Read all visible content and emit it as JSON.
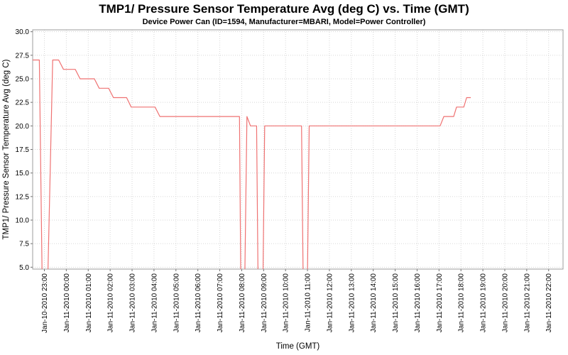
{
  "chart_data": {
    "type": "line",
    "title": "TMP1/ Pressure Sensor Temperature Avg (deg C) vs. Time (GMT)",
    "subtitle": "Device Power Can (ID=1594, Manufacturer=MBARI, Model=Power Controller)",
    "xlabel": "Time (GMT)",
    "ylabel": "TMP1/ Pressure Sensor Temperature Avg (deg C)",
    "ylim": [
      5.0,
      30.0
    ],
    "grid": true,
    "legend": "none",
    "y_tick_labels": [
      "5.0",
      "7.5",
      "10.0",
      "12.5",
      "15.0",
      "17.5",
      "20.0",
      "22.5",
      "25.0",
      "27.5",
      "30.0"
    ],
    "x_tick_labels": [
      "Jan-10-2010 23:00",
      "Jan-11-2010 00:00",
      "Jan-11-2010 01:00",
      "Jan-11-2010 02:00",
      "Jan-11-2010 03:00",
      "Jan-11-2010 04:00",
      "Jan-11-2010 05:00",
      "Jan-11-2010 06:00",
      "Jan-11-2010 07:00",
      "Jan-11-2010 08:00",
      "Jan-11-2010 09:00",
      "Jan-11-2010 10:00",
      "Jan-11-2010 11:00",
      "Jan-11-2010 12:00",
      "Jan-11-2010 13:00",
      "Jan-11-2010 14:00",
      "Jan-11-2010 15:00",
      "Jan-11-2010 16:00",
      "Jan-11-2010 17:00",
      "Jan-11-2010 18:00",
      "Jan-11-2010 19:00",
      "Jan-11-2010 20:00",
      "Jan-11-2010 21:00",
      "Jan-11-2010 22:00"
    ],
    "x_unit": "hours offset from first tick; tick index i corresponds to x_tick_labels[i]",
    "note": "temperature steps are ~1 deg; four spikes drop below the axis minimum and are clipped at 5.0",
    "series": [
      {
        "name": "TMP1/ Pressure Sensor Temperature Avg",
        "color": "#ef7272",
        "points": [
          [
            -0.55,
            27
          ],
          [
            -0.23,
            27
          ],
          [
            -0.08,
            0
          ],
          [
            0.12,
            0
          ],
          [
            0.38,
            27
          ],
          [
            0.65,
            27
          ],
          [
            0.87,
            26
          ],
          [
            1.41,
            26
          ],
          [
            1.63,
            25
          ],
          [
            2.28,
            25
          ],
          [
            2.5,
            24
          ],
          [
            2.93,
            24
          ],
          [
            3.15,
            23
          ],
          [
            3.75,
            23
          ],
          [
            3.96,
            22
          ],
          [
            5.05,
            22
          ],
          [
            5.27,
            21
          ],
          [
            8.9,
            21
          ],
          [
            8.97,
            0
          ],
          [
            9.12,
            0
          ],
          [
            9.24,
            21
          ],
          [
            9.4,
            20
          ],
          [
            9.68,
            20
          ],
          [
            9.76,
            0
          ],
          [
            9.95,
            0
          ],
          [
            10.05,
            20
          ],
          [
            11.73,
            20
          ],
          [
            11.82,
            0
          ],
          [
            11.98,
            0
          ],
          [
            12.08,
            20
          ],
          [
            18.05,
            20
          ],
          [
            18.22,
            21
          ],
          [
            18.67,
            21
          ],
          [
            18.8,
            22
          ],
          [
            19.13,
            22
          ],
          [
            19.26,
            23
          ],
          [
            19.45,
            23
          ]
        ]
      }
    ]
  },
  "colors": {
    "line": "#ef7272",
    "grid": "#d6d6d6",
    "frame": "#9c9c9c",
    "tick": "#6e6e6e",
    "text": "#000000",
    "background": "#ffffff"
  }
}
